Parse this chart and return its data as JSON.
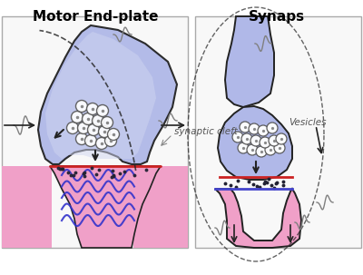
{
  "title_left": "Motor End-plate",
  "title_right": "Synaps",
  "label_synaptic_cleft": "synaptic cleft",
  "label_vesicles": "Vesicles",
  "bg_color": "#ffffff",
  "nerve_fill": "#b0b8e8",
  "muscle_fill": "#f0a0c8",
  "red_line_color": "#cc2222",
  "blue_wave_color": "#3333cc",
  "dark_outline": "#222222",
  "dot_color": "#222233",
  "title_fontsize": 11,
  "label_fontsize": 7.5
}
